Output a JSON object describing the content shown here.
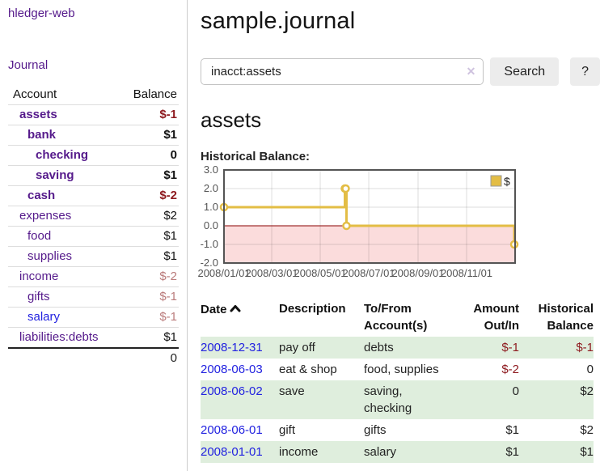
{
  "app": {
    "title": "hledger-web"
  },
  "sidebar": {
    "journal_link": "Journal",
    "accounts_header": {
      "account": "Account",
      "balance": "Balance"
    },
    "accounts": [
      {
        "name": "assets",
        "balance": "$-1"
      },
      {
        "name": "bank",
        "balance": "$1"
      },
      {
        "name": "checking",
        "balance": "0"
      },
      {
        "name": "saving",
        "balance": "$1"
      },
      {
        "name": "cash",
        "balance": "$-2"
      },
      {
        "name": "expenses",
        "balance": "$2"
      },
      {
        "name": "food",
        "balance": "$1"
      },
      {
        "name": "supplies",
        "balance": "$1"
      },
      {
        "name": "income",
        "balance": "$-2"
      },
      {
        "name": "gifts",
        "balance": "$-1"
      },
      {
        "name": "salary",
        "balance": "$-1"
      },
      {
        "name": "liabilities:debts",
        "balance": "$1"
      }
    ],
    "total": "0"
  },
  "header": {
    "title": "sample.journal"
  },
  "search": {
    "query": "inacct:assets",
    "clear_char": "✕",
    "button_label": "Search",
    "help_label": "?"
  },
  "account_page": {
    "heading": "assets",
    "chart_label": "Historical Balance:"
  },
  "chart_data": {
    "type": "line",
    "step": true,
    "title": "Historical Balance:",
    "series": [
      {
        "name": "$",
        "color": "#e3bd45",
        "points": [
          [
            "2008-01-01",
            1
          ],
          [
            "2008-06-01",
            2
          ],
          [
            "2008-06-02",
            2
          ],
          [
            "2008-06-03",
            0
          ],
          [
            "2008-12-31",
            -1
          ]
        ]
      }
    ],
    "x_range": [
      "2008-01-01",
      "2009-01-01"
    ],
    "x_ticks": [
      "2008/01/01",
      "2008/03/01",
      "2008/05/01",
      "2008/07/01",
      "2008/09/01",
      "2008/11/01"
    ],
    "y_ticks": [
      3.0,
      2.0,
      1.0,
      0.0,
      -1.0,
      -2.0
    ],
    "ylim": [
      -2,
      3
    ],
    "grid": true,
    "legend_position": "top-right",
    "negative_region_color": "#fbdcdc",
    "zero_line_color": "#8b0000"
  },
  "register": {
    "headers": {
      "date": "Date",
      "description": "Description",
      "accounts": "To/From Account(s)",
      "amount": "Amount Out/In",
      "balance": "Historical Balance"
    },
    "rows": [
      {
        "date": "2008-12-31",
        "description": "pay off",
        "accounts": "debts",
        "amount": "$-1",
        "balance": "$-1"
      },
      {
        "date": "2008-06-03",
        "description": "eat & shop",
        "accounts": "food, supplies",
        "amount": "$-2",
        "balance": "0"
      },
      {
        "date": "2008-06-02",
        "description": "save",
        "accounts": "saving, checking",
        "amount": "0",
        "balance": "$2"
      },
      {
        "date": "2008-06-01",
        "description": "gift",
        "accounts": "gifts",
        "amount": "$1",
        "balance": "$2"
      },
      {
        "date": "2008-01-01",
        "description": "income",
        "accounts": "salary",
        "amount": "$1",
        "balance": "$1"
      }
    ]
  }
}
